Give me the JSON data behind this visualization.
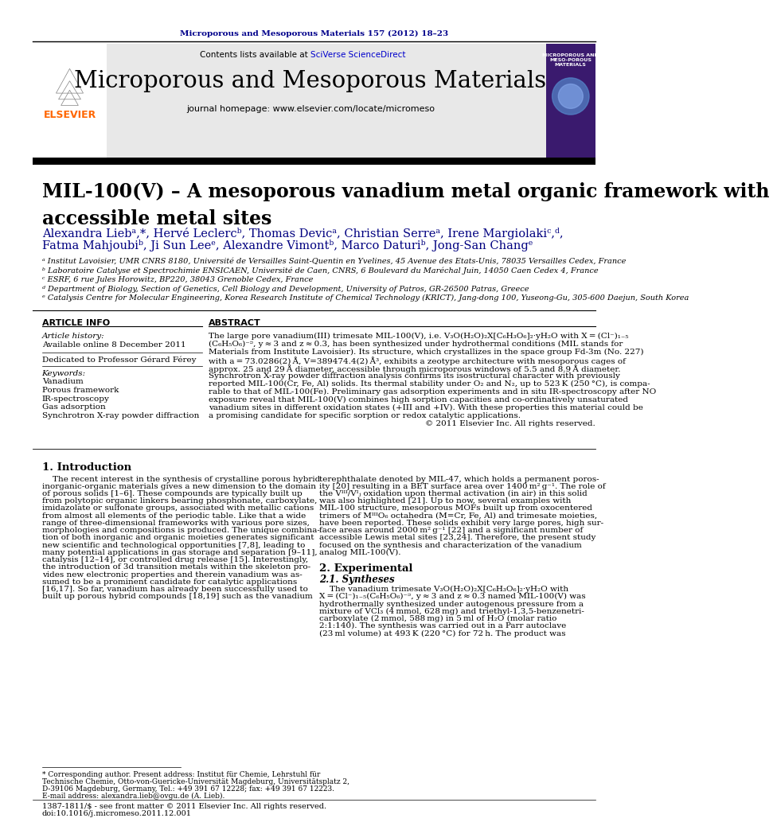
{
  "page_bg": "#ffffff",
  "journal_ref_text": "Microporous and Mesoporous Materials 157 (2012) 18–23",
  "journal_ref_color": "#00008B",
  "header_bg": "#e8e8e8",
  "header_title": "Microporous and Mesoporous Materials",
  "header_subtitle": "journal homepage: www.elsevier.com/locate/micromeso",
  "contents_text": "Contents lists available at ",
  "sciverse_text": "SciVerse ScienceDirect",
  "sciverse_color": "#0000CC",
  "elsevier_color": "#FF6600",
  "article_title": "MIL-100(V) – A mesoporous vanadium metal organic framework with\naccessible metal sites",
  "authors_line1": "Alexandra Liebᵃ,*, Hervé Leclercᵇ, Thomas Devicᵃ, Christian Serreᵃ, Irene Margiolakiᶜ,ᵈ,",
  "authors_line2": "Fatma Mahjoubiᵇ, Ji Sun Leeᵉ, Alexandre Vimontᵇ, Marco Daturiᵇ, Jong-San Changᵉ",
  "affil_a": "ᵃ Institut Lavoisier, UMR CNRS 8180, Université de Versailles Saint-Quentin en Yvelines, 45 Avenue des Etats-Unis, 78035 Versailles Cedex, France",
  "affil_b": "ᵇ Laboratoire Catalyse et Spectrochimie ENSICAEN, Université de Caen, CNRS, 6 Boulevard du Maréchal Juin, 14050 Caen Cedex 4, France",
  "affil_c": "ᶜ ESRF, 6 rue Jules Horowitz, BP220, 38043 Grenoble Cedex, France",
  "affil_d": "ᵈ Department of Biology, Section of Genetics, Cell Biology and Development, University of Patros, GR-26500 Patras, Greece",
  "affil_e": "ᵉ Catalysis Centre for Molecular Engineering, Korea Research Institute of Chemical Technology (KRICT), Jang-dong 100, Yuseong-Gu, 305-600 Daejun, South Korea",
  "article_info_title": "ARTICLE INFO",
  "abstract_title": "ABSTRACT",
  "article_history_label": "Article history:",
  "available_online": "Available online 8 December 2011",
  "dedicated": "Dedicated to Professor Gérard Férey",
  "keywords_label": "Keywords:",
  "keywords": [
    "Vanadium",
    "Porous framework",
    "IR-spectroscopy",
    "Gas adsorption",
    "Synchrotron X-ray powder diffraction"
  ],
  "abstract_lines": [
    "The large pore vanadium(III) trimesate MIL-100(V), i.e. V₃O(H₂O)₂X[C₆H₃O₆]₂·yH₂O with X = (Cl⁻)₁₋₅",
    "(C₆H₅O₆)⁻ᵙ, y ≈ 3 and z ≈ 0.3, has been synthesized under hydrothermal conditions (MIL stands for",
    "Materials from Institute Lavoisier). Its structure, which crystallizes in the space group Fd-3m (No. 227)",
    "with a = 73.0286(2) Å, V=389474.4(2) Å³, exhibits a zeotype architecture with mesoporous cages of",
    "approx. 25 and 29 Å diameter, accessible through microporous windows of 5.5 and 8.9 Å diameter.",
    "Synchrotron X-ray powder diffraction analysis confirms its isostructural character with previously",
    "reported MIL-100(Cr, Fe, Al) solids. Its thermal stability under O₂ and N₂, up to 523 K (250 °C), is compa-",
    "rable to that of MIL-100(Fe). Preliminary gas adsorption experiments and in situ IR-spectroscopy after NO",
    "exposure reveal that MIL-100(V) combines high sorption capacities and co-ordinatively unsaturated",
    "vanadium sites in different oxidation states (+III and +IV). With these properties this material could be",
    "a promising candidate for specific sorption or redox catalytic applications.",
    "© 2011 Elsevier Inc. All rights reserved."
  ],
  "intro_title": "1. Introduction",
  "intro_left_lines": [
    "    The recent interest in the synthesis of crystalline porous hybrid",
    "inorganic-organic materials gives a new dimension to the domain",
    "of porous solids [1–6]. These compounds are typically built up",
    "from polytopic organic linkers bearing phosphonate, carboxylate,",
    "imidazolate or sulfonate groups, associated with metallic cations",
    "from almost all elements of the periodic table. Like that a wide",
    "range of three-dimensional frameworks with various pore sizes,",
    "morphologies and compositions is produced. The unique combina-",
    "tion of both inorganic and organic moieties generates significant",
    "new scientific and technological opportunities [7,8], leading to",
    "many potential applications in gas storage and separation [9–11],",
    "catalysis [12–14], or controlled drug release [15]. Interestingly,",
    "the introduction of 3d transition metals within the skeleton pro-",
    "vides new electronic properties and therein vanadium was as-",
    "sumed to be a prominent candidate for catalytic applications",
    "[16,17]. So far, vanadium has already been successfully used to",
    "built up porous hybrid compounds [18,19] such as the vanadium"
  ],
  "intro_right_lines": [
    "terephthalate denoted by MIL-47, which holds a permanent poros-",
    "ity [20] resulting in a BET surface area over 1400 m² g⁻¹. The role of",
    "the Vᴵᴵᴵ/Vᴵⱼ oxidation upon thermal activation (in air) in this solid",
    "was also highlighted [21]. Up to now, several examples with",
    "MIL-100 structure, mesoporous MOFs built up from oxocentered",
    "trimers of MᴵᴵᴵO₆ octahedra (M=Cr, Fe, Al) and trimesate moieties,",
    "have been reported. These solids exhibit very large pores, high sur-",
    "face areas around 2000 m² g⁻¹ [22] and a significant number of",
    "accessible Lewis metal sites [23,24]. Therefore, the present study",
    "focused on the synthesis and characterization of the vanadium",
    "analog MIL-100(V)."
  ],
  "section2_title": "2. Experimental",
  "section21_title": "2.1. Syntheses",
  "synth_lines": [
    "    The vanadium trimesate V₃O(H₂O)₂X[C₆H₃O₆]₂·yH₂O with",
    "X = (Cl⁻)₁₋₅(C₆H₅O₆)⁻ᵙ, y ≈ 3 and z ≈ 0.3 named MIL-100(V) was",
    "hydrothermally synthesized under autogenous pressure from a",
    "mixture of VCl₃ (4 mmol, 628 mg) and triethyl-1,3,5-benzenetri-",
    "carboxylate (2 mmol, 588 mg) in 5 ml of H₂O (molar ratio",
    "2:1:140). The synthesis was carried out in a Parr autoclave",
    "(23 ml volume) at 493 K (220 °C) for 72 h. The product was"
  ],
  "footnote_star": "* Corresponding author. Present address: Institut für Chemie, Lehrstuhl für",
  "footnote_star2": "Technische Chemie, Otto-von-Guericke-Universität Magdeburg, Universitätsplatz 2,",
  "footnote_star3": "D-39106 Magdeburg, Germany, Tel.: +49 391 67 12228; fax: +49 391 67 12223.",
  "footnote_email": "E-mail address: alexandra.lieb@ovgu.de (A. Lieb).",
  "footer_left": "1387-1811/$ - see front matter © 2011 Elsevier Inc. All rights reserved.",
  "footer_doi": "doi:10.1016/j.micromeso.2011.12.001"
}
